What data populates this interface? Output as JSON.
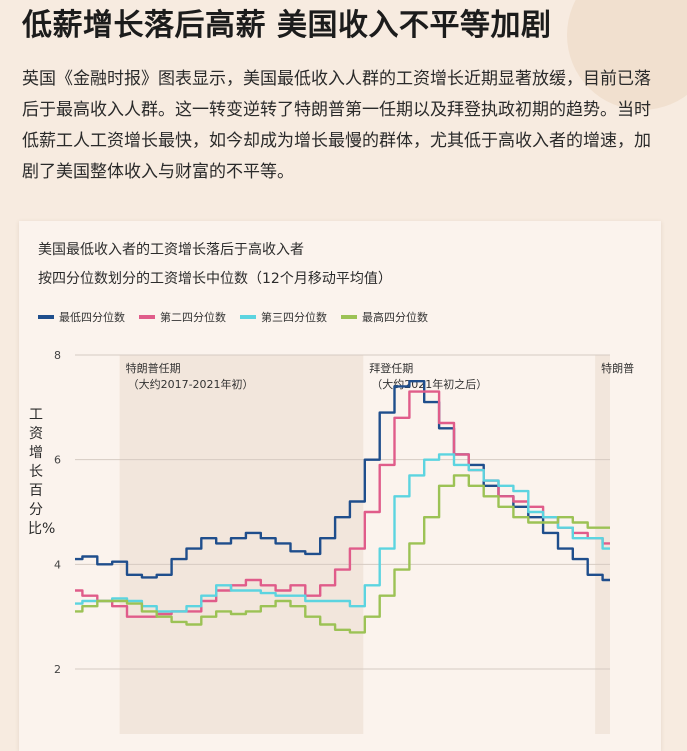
{
  "page": {
    "headline": "低薪增长落后高薪 美国收入不平等加剧",
    "intro": "英国《金融时报》图表显示，美国最低收入人群的工资增长近期显著放缓，目前已落后于最高收入人群。这一转变逆转了特朗普第一任期以及拜登执政初期的趋势。当时低薪工人工资增长最快，如今却成为增长最慢的群体，尤其低于高收入者的增速，加剧了美国整体收入与财富的不平等。"
  },
  "chart_data": {
    "type": "line",
    "title": "美国最低收入者的工资增长落后于高收入者",
    "subtitle": "按四分位数划分的工资增长中位数（12个月移动平均值）",
    "ylabel": "工资增长百分比%",
    "ylim": [
      2,
      8
    ],
    "yticks": [
      "2",
      "4",
      "6",
      "8"
    ],
    "grid": true,
    "legend_position": "top-left",
    "xlim": [
      2016.25,
      2025.25
    ],
    "annotations": [
      {
        "label": "特朗普任期",
        "sub": "（大约2017-2021年初）",
        "start": 2017.0,
        "end": 2021.1
      },
      {
        "label": "拜登任期",
        "sub": "（大约2021年初之后）",
        "start": 2021.1,
        "end": 2025.0
      },
      {
        "label": "特朗普",
        "sub": "",
        "start": 2025.0,
        "end": 2025.25
      }
    ],
    "series": [
      {
        "name": "最低四分位数",
        "color": "#1f4e8c",
        "x": [
          2016.25,
          2016.5,
          2016.75,
          2017.0,
          2017.25,
          2017.5,
          2017.75,
          2018.0,
          2018.25,
          2018.5,
          2018.75,
          2019.0,
          2019.25,
          2019.5,
          2019.75,
          2020.0,
          2020.25,
          2020.5,
          2020.75,
          2021.0,
          2021.25,
          2021.5,
          2021.75,
          2022.0,
          2022.25,
          2022.5,
          2022.75,
          2023.0,
          2023.25,
          2023.5,
          2023.75,
          2024.0,
          2024.25,
          2024.5,
          2024.75,
          2025.0,
          2025.25
        ],
        "y": [
          4.1,
          4.15,
          4.0,
          4.05,
          3.8,
          3.75,
          3.8,
          4.1,
          4.3,
          4.5,
          4.4,
          4.5,
          4.6,
          4.5,
          4.4,
          4.25,
          4.2,
          4.5,
          4.9,
          5.2,
          6.0,
          6.9,
          7.4,
          7.5,
          7.1,
          6.6,
          6.1,
          5.9,
          5.5,
          5.3,
          5.1,
          4.9,
          4.6,
          4.3,
          4.1,
          3.8,
          3.7
        ]
      },
      {
        "name": "第二四分位数",
        "color": "#e05c8a",
        "x": [
          2016.25,
          2016.5,
          2016.75,
          2017.0,
          2017.25,
          2017.5,
          2017.75,
          2018.0,
          2018.25,
          2018.5,
          2018.75,
          2019.0,
          2019.25,
          2019.5,
          2019.75,
          2020.0,
          2020.25,
          2020.5,
          2020.75,
          2021.0,
          2021.25,
          2021.5,
          2021.75,
          2022.0,
          2022.25,
          2022.5,
          2022.75,
          2023.0,
          2023.25,
          2023.5,
          2023.75,
          2024.0,
          2024.25,
          2024.5,
          2024.75,
          2025.0,
          2025.25
        ],
        "y": [
          3.5,
          3.4,
          3.3,
          3.2,
          3.0,
          3.0,
          3.05,
          3.1,
          3.1,
          3.3,
          3.5,
          3.6,
          3.7,
          3.6,
          3.5,
          3.6,
          3.4,
          3.6,
          3.9,
          4.3,
          5.0,
          5.9,
          6.8,
          7.3,
          7.3,
          6.7,
          6.1,
          5.8,
          5.6,
          5.3,
          5.2,
          5.1,
          4.9,
          4.7,
          4.6,
          4.5,
          4.4
        ]
      },
      {
        "name": "第三四分位数",
        "color": "#5cd4e0",
        "x": [
          2016.25,
          2016.5,
          2016.75,
          2017.0,
          2017.25,
          2017.5,
          2017.75,
          2018.0,
          2018.25,
          2018.5,
          2018.75,
          2019.0,
          2019.25,
          2019.5,
          2019.75,
          2020.0,
          2020.25,
          2020.5,
          2020.75,
          2021.0,
          2021.25,
          2021.5,
          2021.75,
          2022.0,
          2022.25,
          2022.5,
          2022.75,
          2023.0,
          2023.25,
          2023.5,
          2023.75,
          2024.0,
          2024.25,
          2024.5,
          2024.75,
          2025.0,
          2025.25
        ],
        "y": [
          3.25,
          3.3,
          3.3,
          3.35,
          3.3,
          3.2,
          3.1,
          3.1,
          3.2,
          3.4,
          3.6,
          3.5,
          3.5,
          3.45,
          3.4,
          3.4,
          3.3,
          3.3,
          3.3,
          3.2,
          3.6,
          4.3,
          5.3,
          5.7,
          6.0,
          6.1,
          5.9,
          5.8,
          5.6,
          5.5,
          5.4,
          5.0,
          4.9,
          4.7,
          4.5,
          4.5,
          4.3
        ]
      },
      {
        "name": "最高四分位数",
        "color": "#9cc255",
        "x": [
          2016.25,
          2016.5,
          2016.75,
          2017.0,
          2017.25,
          2017.5,
          2017.75,
          2018.0,
          2018.25,
          2018.5,
          2018.75,
          2019.0,
          2019.25,
          2019.5,
          2019.75,
          2020.0,
          2020.25,
          2020.5,
          2020.75,
          2021.0,
          2021.25,
          2021.5,
          2021.75,
          2022.0,
          2022.25,
          2022.5,
          2022.75,
          2023.0,
          2023.25,
          2023.5,
          2023.75,
          2024.0,
          2024.25,
          2024.5,
          2024.75,
          2025.0,
          2025.25
        ],
        "y": [
          3.1,
          3.2,
          3.3,
          3.3,
          3.25,
          3.1,
          3.0,
          2.9,
          2.85,
          3.0,
          3.1,
          3.05,
          3.1,
          3.2,
          3.3,
          3.2,
          3.0,
          2.85,
          2.75,
          2.7,
          3.0,
          3.4,
          3.9,
          4.4,
          4.9,
          5.5,
          5.7,
          5.5,
          5.3,
          5.1,
          4.9,
          4.8,
          4.8,
          4.9,
          4.8,
          4.7,
          4.7
        ]
      }
    ]
  },
  "ui_colors": {
    "accent_band": "#f2e6dc",
    "grid": "#d6cbc2"
  }
}
